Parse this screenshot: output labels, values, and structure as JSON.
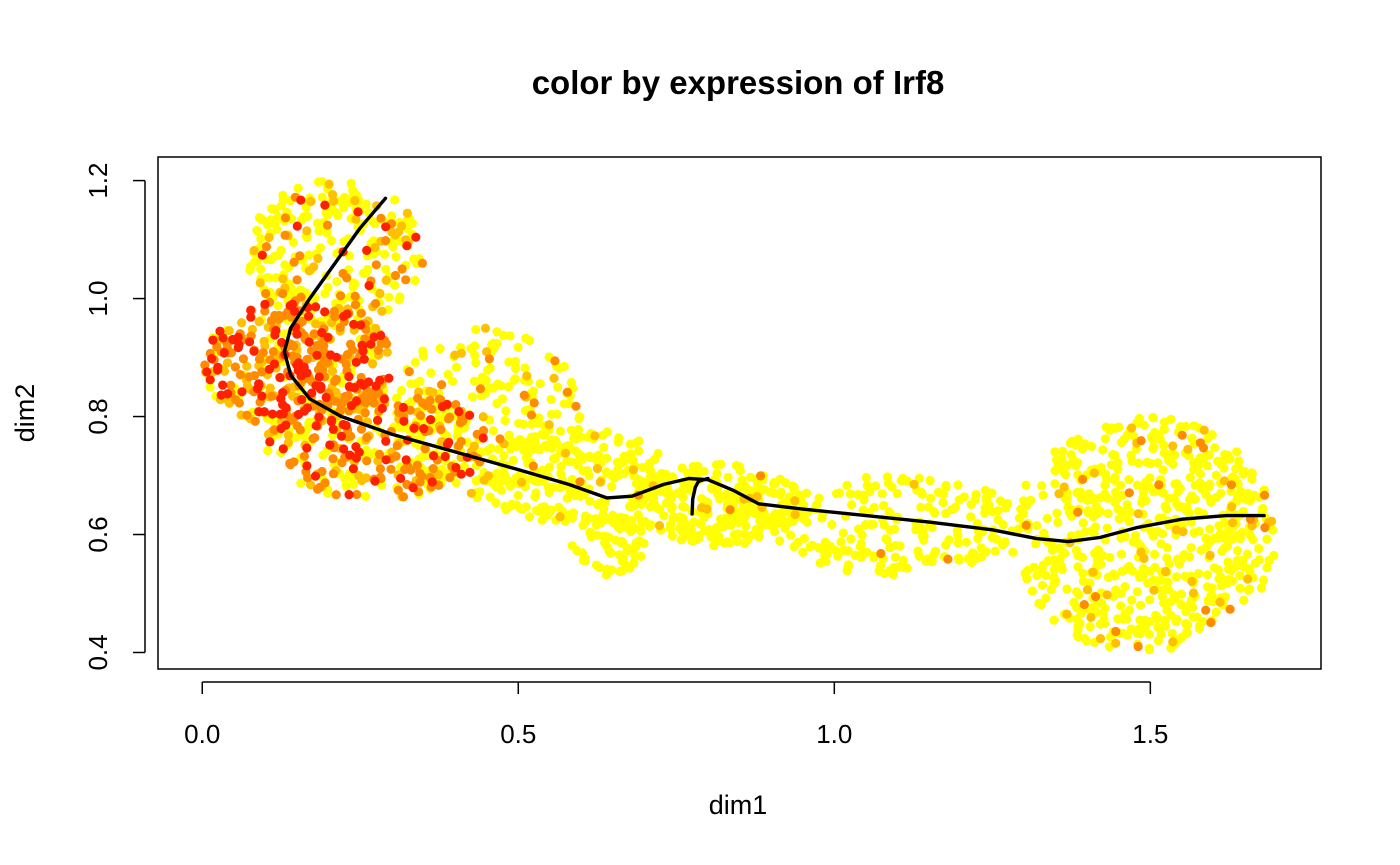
{
  "chart_data": {
    "type": "scatter",
    "title": "color by expression of Irf8",
    "xlabel": "dim1",
    "ylabel": "dim2",
    "xlim": [
      -0.07,
      1.77
    ],
    "ylim": [
      0.372,
      1.24
    ],
    "x_ticks": [
      {
        "value": 0.0,
        "label": "0.0"
      },
      {
        "value": 0.5,
        "label": "0.5"
      },
      {
        "value": 1.0,
        "label": "1.0"
      },
      {
        "value": 1.5,
        "label": "1.5"
      }
    ],
    "y_ticks": [
      {
        "value": 0.4,
        "label": "0.4"
      },
      {
        "value": 0.6,
        "label": "0.6"
      },
      {
        "value": 0.8,
        "label": "0.8"
      },
      {
        "value": 1.0,
        "label": "1.0"
      },
      {
        "value": 1.2,
        "label": "1.2"
      }
    ],
    "grid": false,
    "legend": "none",
    "colors": {
      "low": "#FFFF00",
      "mid_low": "#FFC000",
      "mid_high": "#FF8C00",
      "high": "#FF2000"
    },
    "trajectory": {
      "color": "#000000",
      "main_path": [
        [
          0.29,
          1.17
        ],
        [
          0.25,
          1.12
        ],
        [
          0.21,
          1.06
        ],
        [
          0.17,
          1.0
        ],
        [
          0.14,
          0.95
        ],
        [
          0.13,
          0.91
        ],
        [
          0.14,
          0.87
        ],
        [
          0.17,
          0.83
        ],
        [
          0.22,
          0.8
        ],
        [
          0.3,
          0.77
        ],
        [
          0.4,
          0.74
        ],
        [
          0.5,
          0.71
        ],
        [
          0.58,
          0.685
        ],
        [
          0.64,
          0.662
        ],
        [
          0.68,
          0.665
        ],
        [
          0.73,
          0.685
        ],
        [
          0.77,
          0.695
        ],
        [
          0.8,
          0.693
        ],
        [
          0.84,
          0.675
        ],
        [
          0.88,
          0.652
        ],
        [
          0.95,
          0.643
        ],
        [
          1.05,
          0.632
        ],
        [
          1.15,
          0.621
        ],
        [
          1.25,
          0.608
        ],
        [
          1.32,
          0.593
        ],
        [
          1.37,
          0.588
        ],
        [
          1.42,
          0.595
        ],
        [
          1.48,
          0.612
        ],
        [
          1.55,
          0.626
        ],
        [
          1.62,
          0.632
        ],
        [
          1.68,
          0.632
        ]
      ],
      "branch_path": [
        [
          0.775,
          0.635
        ],
        [
          0.776,
          0.66
        ],
        [
          0.78,
          0.68
        ],
        [
          0.785,
          0.69
        ],
        [
          0.8,
          0.695
        ]
      ]
    },
    "clusters": [
      {
        "x": [
          0.07,
          0.35
        ],
        "y": [
          0.95,
          1.2
        ],
        "count": 280,
        "weights": [
          0.78,
          0.12,
          0.07,
          0.03
        ],
        "seed": 11
      },
      {
        "x": [
          0.0,
          0.3
        ],
        "y": [
          0.78,
          1.0
        ],
        "count": 420,
        "weights": [
          0.18,
          0.24,
          0.33,
          0.25
        ],
        "seed": 23
      },
      {
        "x": [
          0.1,
          0.45
        ],
        "y": [
          0.66,
          0.85
        ],
        "count": 320,
        "weights": [
          0.35,
          0.25,
          0.28,
          0.12
        ],
        "seed": 37
      },
      {
        "x": [
          0.3,
          0.6
        ],
        "y": [
          0.66,
          0.95
        ],
        "count": 220,
        "weights": [
          0.85,
          0.08,
          0.06,
          0.01
        ],
        "seed": 41
      },
      {
        "x": [
          0.42,
          0.75
        ],
        "y": [
          0.62,
          0.78
        ],
        "count": 220,
        "weights": [
          0.94,
          0.04,
          0.02,
          0.0
        ],
        "seed": 53
      },
      {
        "x": [
          0.58,
          0.7
        ],
        "y": [
          0.53,
          0.64
        ],
        "count": 70,
        "weights": [
          1.0,
          0.0,
          0.0,
          0.0
        ],
        "seed": 59
      },
      {
        "x": [
          0.68,
          0.95
        ],
        "y": [
          0.58,
          0.72
        ],
        "count": 260,
        "weights": [
          0.96,
          0.03,
          0.01,
          0.0
        ],
        "seed": 67
      },
      {
        "x": [
          0.9,
          1.3
        ],
        "y": [
          0.53,
          0.7
        ],
        "count": 200,
        "weights": [
          0.97,
          0.02,
          0.01,
          0.0
        ],
        "seed": 71
      },
      {
        "x": [
          1.28,
          1.7
        ],
        "y": [
          0.4,
          0.8
        ],
        "count": 650,
        "weights": [
          0.9,
          0.06,
          0.04,
          0.0
        ],
        "seed": 83
      }
    ]
  }
}
